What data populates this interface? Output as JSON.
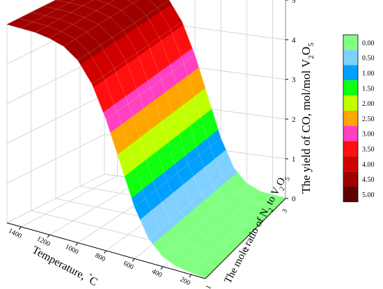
{
  "chart_data": {
    "type": "surface3d",
    "z_axis_label": "The yield of CO, mol/mol V",
    "z_axis_label_sub": "2",
    "z_axis_label_mid": "O",
    "z_axis_label_sub2": "5",
    "x_axis_label": "Temperature, ",
    "x_axis_unit": "°C",
    "y_axis_label": "The mole ratio of N",
    "y_axis_label_sub1": "2",
    "y_axis_label_mid": " to V",
    "y_axis_label_sub2": "2",
    "y_axis_label_mid2": "O",
    "y_axis_label_sub3": "5",
    "x_ticks": [
      "1400",
      "1200",
      "1000",
      "800",
      "600",
      "400",
      "200"
    ],
    "y_ticks": [
      "1",
      "2",
      "3"
    ],
    "z_ticks": [
      "0",
      "1",
      "2",
      "3",
      "4",
      "5"
    ],
    "zlim": [
      0,
      5
    ],
    "xlim": [
      100,
      1500
    ],
    "surface": {
      "description_shape": "sigmoid",
      "temperature": [
        100,
        200,
        300,
        400,
        500,
        600,
        700,
        800,
        900,
        1000,
        1100,
        1200,
        1300,
        1400,
        1500
      ],
      "yield": [
        0.02,
        0.05,
        0.1,
        0.25,
        0.6,
        1.3,
        2.3,
        3.3,
        4.1,
        4.6,
        4.85,
        4.95,
        5.0,
        5.0,
        5.0
      ]
    },
    "legend": {
      "placement": "right",
      "levels": [
        "0.00",
        "0.50",
        "1.00",
        "1.50",
        "2.00",
        "2.50",
        "3.00",
        "3.50",
        "4.00",
        "4.50",
        "5.00"
      ],
      "colors": [
        "#80ff80",
        "#80d0ff",
        "#00a0ff",
        "#10ff10",
        "#c0ff00",
        "#ffa500",
        "#ff40c0",
        "#ff1010",
        "#d00000",
        "#a00000",
        "#600000"
      ]
    },
    "grid": true
  }
}
